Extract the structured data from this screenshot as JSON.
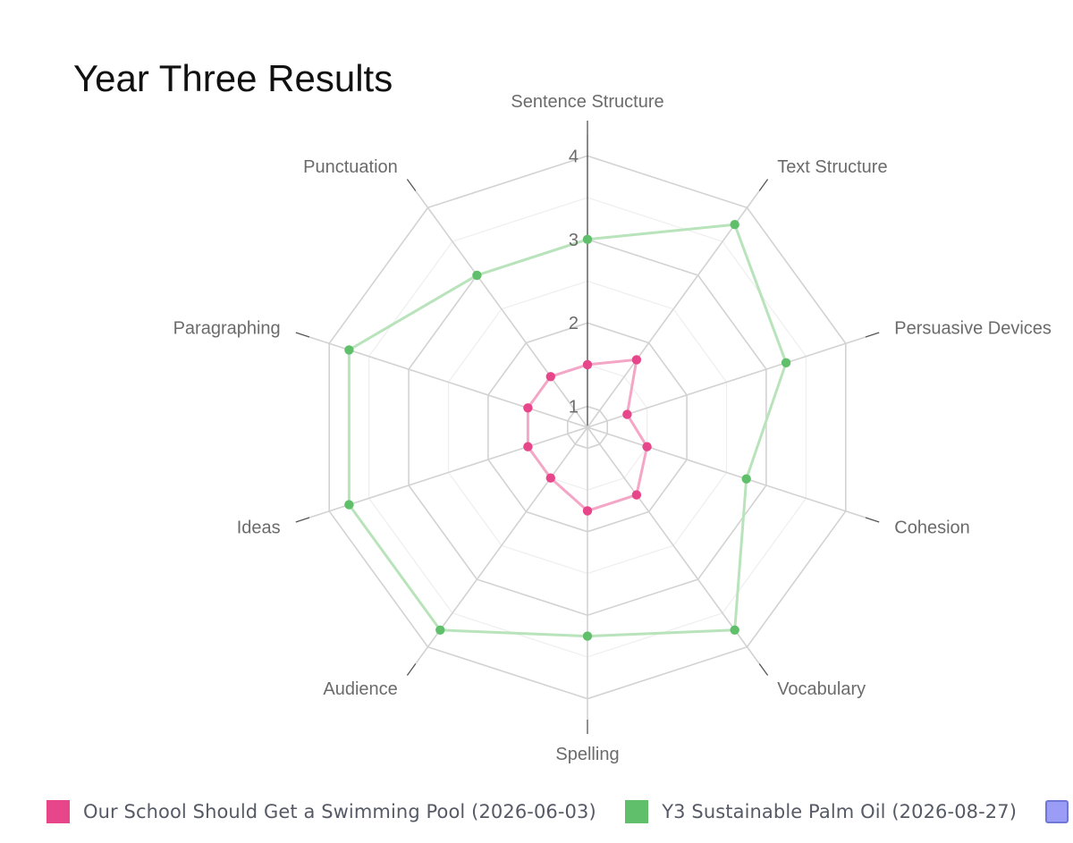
{
  "chart_data": {
    "type": "radar",
    "title": "Year Three Results",
    "axes": [
      "Sentence Structure",
      "Text Structure",
      "Persuasive Devices",
      "Cohesion",
      "Vocabulary",
      "Spelling",
      "Audience",
      "Ideas",
      "Paragraphing",
      "Punctuation"
    ],
    "ticks": [
      "1",
      "2",
      "3",
      "4"
    ],
    "r_range": [
      0.75,
      4.25
    ],
    "grid": true,
    "legend_position": "bottom",
    "series": [
      {
        "name": "Our School Should Get a Swimming Pool (2026-06-03)",
        "color": "#e8468a",
        "line_color": "#f4a6c6",
        "values": [
          1.5,
          1.75,
          1.25,
          1.5,
          1.75,
          1.75,
          1.5,
          1.5,
          1.5,
          1.5
        ]
      },
      {
        "name": "Y3 Sustainable Palm Oil (2026-08-27)",
        "color": "#5fbf6a",
        "line_color": "#b8e3bb",
        "values": [
          3.0,
          3.75,
          3.25,
          2.75,
          3.75,
          3.25,
          3.75,
          3.75,
          3.75,
          3.0
        ]
      }
    ],
    "legend_extra": [
      {
        "color": "#9b9cf5",
        "border": "#6f78d6"
      }
    ]
  }
}
